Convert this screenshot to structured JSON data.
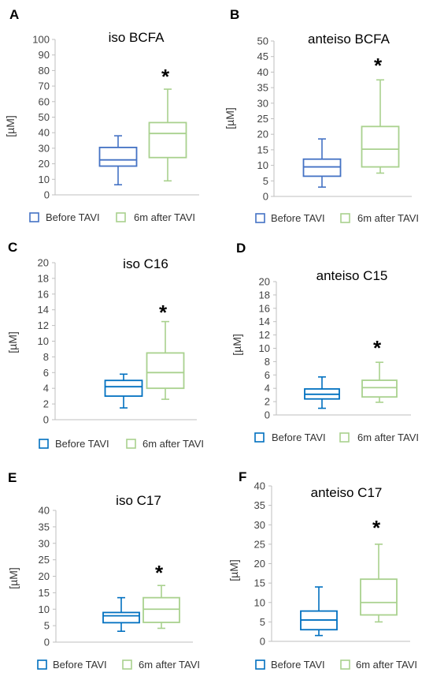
{
  "panel_color_sets": [
    {
      "before": "#4472C4",
      "after": "#A9D18E"
    },
    {
      "before": "#0070C0",
      "after": "#A9D18E"
    }
  ],
  "chart_data": [
    {
      "type": "boxplot",
      "letter": "A",
      "title": "iso BCFA",
      "ylabel": "[µM]",
      "ylim": [
        0,
        100
      ],
      "yticks": [
        0,
        10,
        20,
        30,
        40,
        50,
        60,
        70,
        80,
        90,
        100
      ],
      "categories": [
        "Before TAVI",
        "6m after TAVI"
      ],
      "series": [
        {
          "name": "Before TAVI",
          "min": 6.5,
          "q1": 18.5,
          "median": 22.5,
          "q3": 30.5,
          "max": 38.0
        },
        {
          "name": "6m after TAVI",
          "min": 9.0,
          "q1": 24.0,
          "median": 39.5,
          "q3": 46.5,
          "max": 68.0
        }
      ],
      "annotation": "*",
      "grid": false,
      "legend_position": "bottom"
    },
    {
      "type": "boxplot",
      "letter": "B",
      "title": "anteiso BCFA",
      "ylabel": "[µM]",
      "ylim": [
        0,
        50
      ],
      "yticks": [
        0,
        5,
        10,
        15,
        20,
        25,
        30,
        35,
        40,
        45,
        50
      ],
      "categories": [
        "Before TAVI",
        "6m after TAVI"
      ],
      "series": [
        {
          "name": "Before TAVI",
          "min": 3.0,
          "q1": 6.5,
          "median": 9.5,
          "q3": 12.0,
          "max": 18.5
        },
        {
          "name": "6m after TAVI",
          "min": 7.5,
          "q1": 9.5,
          "median": 15.2,
          "q3": 22.5,
          "max": 37.5
        }
      ],
      "annotation": "*",
      "grid": false,
      "legend_position": "bottom"
    },
    {
      "type": "boxplot",
      "letter": "C",
      "title": "iso C16",
      "ylabel": "[µM]",
      "ylim": [
        0,
        20
      ],
      "yticks": [
        0,
        2,
        4,
        6,
        8,
        10,
        12,
        14,
        16,
        18,
        20
      ],
      "categories": [
        "Before TAVI",
        "6m after TAVI"
      ],
      "series": [
        {
          "name": "Before TAVI",
          "min": 1.5,
          "q1": 3.0,
          "median": 4.2,
          "q3": 5.0,
          "max": 5.8
        },
        {
          "name": "6m after TAVI",
          "min": 2.6,
          "q1": 4.0,
          "median": 6.0,
          "q3": 8.5,
          "max": 12.5
        }
      ],
      "annotation": "*",
      "grid": false,
      "legend_position": "bottom"
    },
    {
      "type": "boxplot",
      "letter": "D",
      "title": "anteiso C15",
      "ylabel": "[µM]",
      "ylim": [
        0,
        20
      ],
      "yticks": [
        0,
        2,
        4,
        6,
        8,
        10,
        12,
        14,
        16,
        18,
        20
      ],
      "categories": [
        "Before TAVI",
        "6m after TAVI"
      ],
      "series": [
        {
          "name": "Before TAVI",
          "min": 1.0,
          "q1": 2.4,
          "median": 3.1,
          "q3": 3.9,
          "max": 5.7
        },
        {
          "name": "6m after TAVI",
          "min": 1.9,
          "q1": 2.7,
          "median": 4.1,
          "q3": 5.2,
          "max": 7.9
        }
      ],
      "annotation": "*",
      "grid": false,
      "legend_position": "bottom"
    },
    {
      "type": "boxplot",
      "letter": "E",
      "title": "iso C17",
      "ylabel": "[µM]",
      "ylim": [
        0,
        40
      ],
      "yticks": [
        0,
        5,
        10,
        15,
        20,
        25,
        30,
        35,
        40
      ],
      "categories": [
        "Before TAVI",
        "6m after TAVI"
      ],
      "series": [
        {
          "name": "Before TAVI",
          "min": 3.3,
          "q1": 5.9,
          "median": 8.0,
          "q3": 9.0,
          "max": 13.5
        },
        {
          "name": "6m after TAVI",
          "min": 4.2,
          "q1": 6.0,
          "median": 10.0,
          "q3": 13.5,
          "max": 17.2
        }
      ],
      "annotation": "*",
      "grid": false,
      "legend_position": "bottom"
    },
    {
      "type": "boxplot",
      "letter": "F",
      "title": "anteiso C17",
      "ylabel": "[µM]",
      "ylim": [
        0,
        40
      ],
      "yticks": [
        0,
        5,
        10,
        15,
        20,
        25,
        30,
        35,
        40
      ],
      "categories": [
        "Before TAVI",
        "6m after TAVI"
      ],
      "series": [
        {
          "name": "Before TAVI",
          "min": 1.5,
          "q1": 3.0,
          "median": 5.5,
          "q3": 7.8,
          "max": 14.0
        },
        {
          "name": "6m after TAVI",
          "min": 5.0,
          "q1": 6.8,
          "median": 10.0,
          "q3": 16.0,
          "max": 25.0
        }
      ],
      "annotation": "*",
      "grid": false,
      "legend_position": "bottom"
    }
  ]
}
